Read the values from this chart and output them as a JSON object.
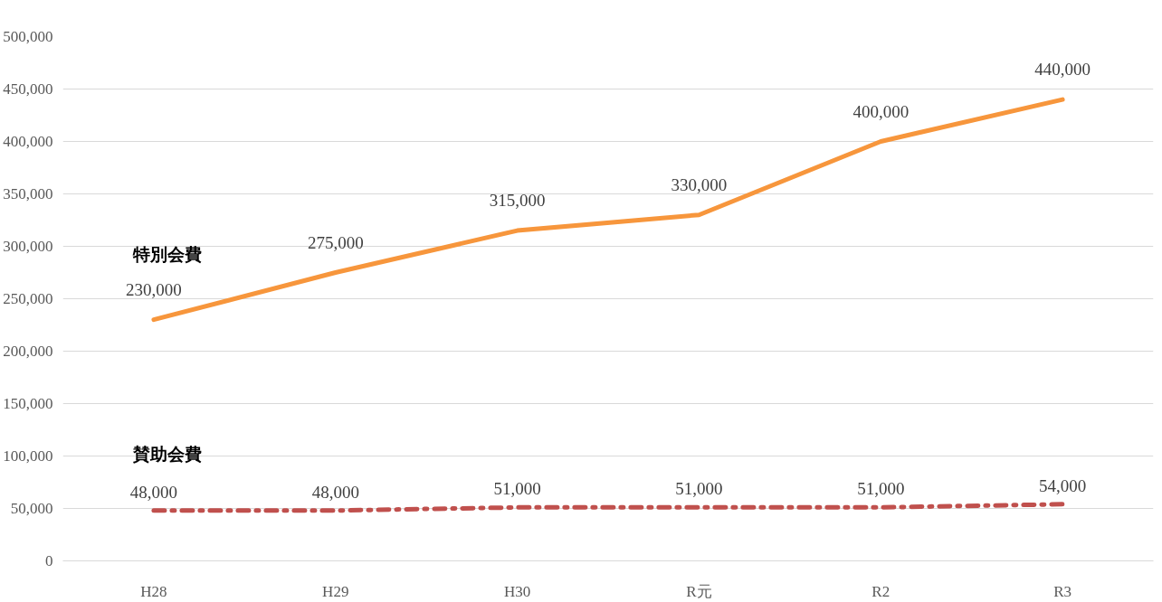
{
  "chart_data": {
    "type": "line",
    "categories": [
      "H28",
      "H29",
      "H30",
      "R元",
      "R2",
      "R3"
    ],
    "series": [
      {
        "name": "特別会費",
        "color": "#f7963c",
        "line_style": "solid",
        "values": [
          230000,
          275000,
          315000,
          330000,
          400000,
          440000
        ],
        "value_labels": [
          "230,000",
          "275,000",
          "315,000",
          "330,000",
          "400,000",
          "440,000"
        ]
      },
      {
        "name": "賛助会費",
        "color": "#c0504d",
        "line_style": "dashed",
        "values": [
          48000,
          48000,
          51000,
          51000,
          51000,
          54000
        ],
        "value_labels": [
          "48,000",
          "48,000",
          "51,000",
          "51,000",
          "51,000",
          "54,000"
        ]
      }
    ],
    "ylim": [
      0,
      500000
    ],
    "yticks": [
      {
        "value": 0,
        "label": "0"
      },
      {
        "value": 50000,
        "label": "50,000"
      },
      {
        "value": 100000,
        "label": "100,000"
      },
      {
        "value": 150000,
        "label": "150,000"
      },
      {
        "value": 200000,
        "label": "200,000"
      },
      {
        "value": 250000,
        "label": "250,000"
      },
      {
        "value": 300000,
        "label": "300,000"
      },
      {
        "value": 350000,
        "label": "350,000"
      },
      {
        "value": 400000,
        "label": "400,000"
      },
      {
        "value": 450000,
        "label": "450,000"
      },
      {
        "value": 500000,
        "label": "500,000"
      }
    ],
    "grid": "y",
    "marker": "none"
  }
}
